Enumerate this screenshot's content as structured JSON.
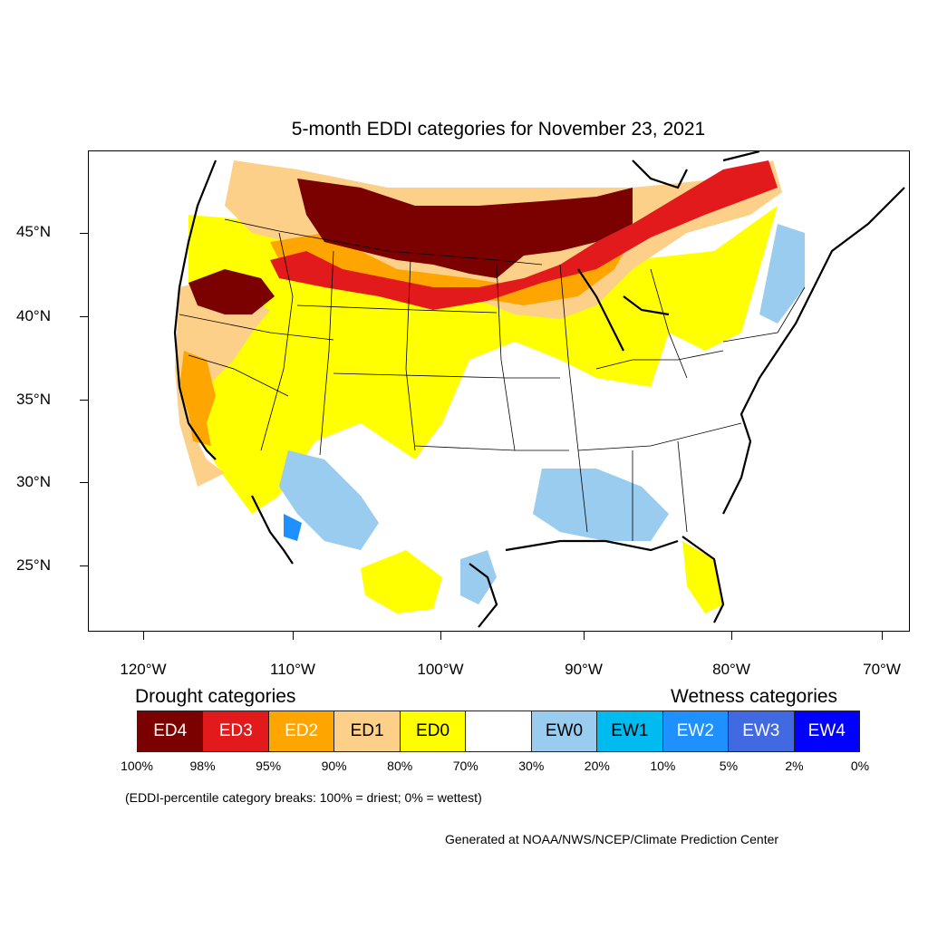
{
  "title": "5-month EDDI categories for November 23, 2021",
  "lat_labels": [
    "45°N",
    "40°N",
    "35°N",
    "30°N",
    "25°N"
  ],
  "lon_labels": [
    "120°W",
    "110°W",
    "100°W",
    "90°W",
    "80°W",
    "70°W"
  ],
  "legend": {
    "drought_heading": "Drought categories",
    "wetness_heading": "Wetness categories",
    "categories": [
      {
        "label": "ED4",
        "color": "#7b0000",
        "text_color": "#ffffff"
      },
      {
        "label": "ED3",
        "color": "#e31a1c",
        "text_color": "#ffffff"
      },
      {
        "label": "ED2",
        "color": "#ffa500",
        "text_color": "#ffffff"
      },
      {
        "label": "ED1",
        "color": "#fdd08a",
        "text_color": "#000000"
      },
      {
        "label": "ED0",
        "color": "#ffff00",
        "text_color": "#000000"
      },
      {
        "label": "",
        "color": "#ffffff",
        "text_color": "#000000"
      },
      {
        "label": "EW0",
        "color": "#99ccee",
        "text_color": "#000000"
      },
      {
        "label": "EW1",
        "color": "#00bbf0",
        "text_color": "#000000"
      },
      {
        "label": "EW2",
        "color": "#1e90ff",
        "text_color": "#ffffff"
      },
      {
        "label": "EW3",
        "color": "#4169e1",
        "text_color": "#ffffff"
      },
      {
        "label": "EW4",
        "color": "#0000ff",
        "text_color": "#ffffff"
      }
    ],
    "breaks": [
      "100%",
      "98%",
      "95%",
      "90%",
      "80%",
      "70%",
      "30%",
      "20%",
      "10%",
      "5%",
      "2%",
      "0%"
    ]
  },
  "note": "(EDDI-percentile category breaks: 100% = driest; 0% = wettest)",
  "credit": "Generated at NOAA/NWS/NCEP/Climate Prediction Center"
}
